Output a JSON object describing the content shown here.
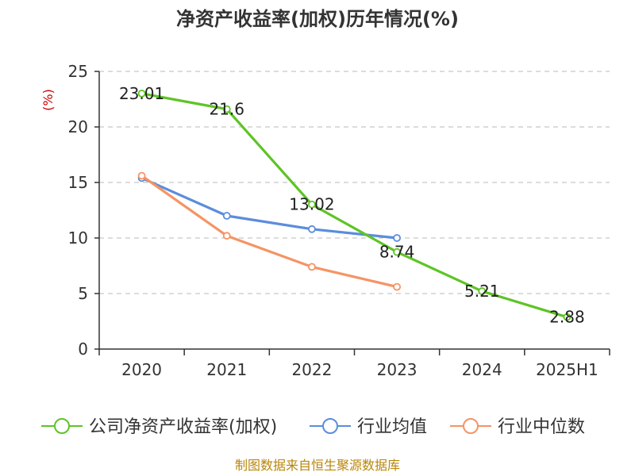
{
  "chart_data": {
    "type": "line",
    "title": "净资产收益率(加权)历年情况(%)",
    "ylabel": "(%)",
    "xlabel": "",
    "categories": [
      "2020",
      "2021",
      "2022",
      "2023",
      "2024",
      "2025H1"
    ],
    "ylim": [
      0,
      25
    ],
    "yticks": [
      0,
      5,
      10,
      15,
      20,
      25
    ],
    "grid": true,
    "legend_position": "bottom",
    "series": [
      {
        "name": "公司净资产收益率(加权)",
        "color": "#5ec425",
        "values": [
          23.01,
          21.6,
          13.02,
          8.74,
          5.21,
          2.88
        ],
        "labels": [
          "23.01",
          "21.6",
          "13.02",
          "8.74",
          "5.21",
          "2.88"
        ]
      },
      {
        "name": "行业均值",
        "color": "#5b8ddc",
        "values": [
          15.4,
          12.0,
          10.8,
          10.0,
          null,
          null
        ]
      },
      {
        "name": "行业中位数",
        "color": "#f59464",
        "values": [
          15.6,
          10.2,
          7.4,
          5.6,
          null,
          null
        ]
      }
    ]
  },
  "source": "制图数据来自恒生聚源数据库"
}
